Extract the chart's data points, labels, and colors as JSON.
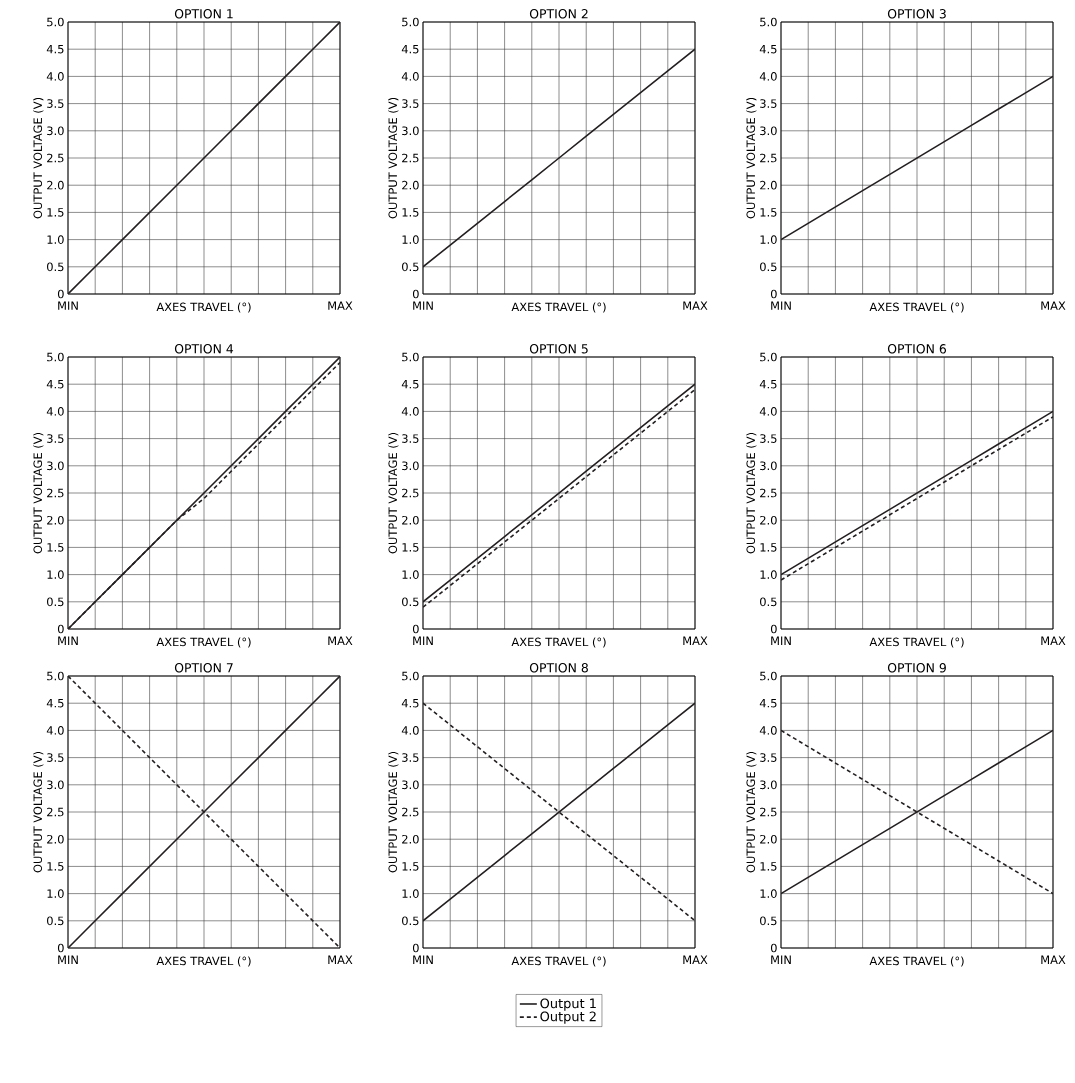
{
  "chart_data": [
    {
      "type": "line",
      "title": "OPTION 1",
      "xlabel": "AXES TRAVEL (°)",
      "ylabel": "OUTPUT VOLTAGE (V)",
      "categories": [
        "MIN",
        null,
        null,
        null,
        null,
        null,
        null,
        null,
        null,
        null,
        "MAX"
      ],
      "ylim": [
        0,
        5
      ],
      "grid": true,
      "yticks": [
        0,
        {
          "value": 0.5,
          "label": "0.5"
        },
        {
          "value": 1,
          "label": "1.0"
        },
        {
          "value": 1.5,
          "label": "1.5"
        },
        {
          "value": 2,
          "label": "2.0"
        },
        {
          "value": 2.5,
          "label": "2.5"
        },
        {
          "value": 3,
          "label": "3.0"
        },
        {
          "value": 3.5,
          "label": "3.5"
        },
        {
          "value": 4,
          "label": "4.0"
        },
        {
          "value": 4.5,
          "label": "4.5"
        },
        {
          "value": 5,
          "label": "5.0"
        }
      ],
      "series": [
        {
          "color": "#231f20",
          "line_style": "solid",
          "values": [
            0,
            0.5,
            1,
            1.5,
            2,
            2.5,
            3,
            3.5,
            4,
            4.5,
            5
          ]
        }
      ]
    },
    {
      "type": "line",
      "title": "OPTION 2",
      "xlabel": "AXES TRAVEL (°)",
      "ylabel": "OUTPUT VOLTAGE (V)",
      "categories": [
        "MIN",
        null,
        null,
        null,
        null,
        null,
        null,
        null,
        null,
        null,
        "MAX"
      ],
      "ylim": [
        0,
        5
      ],
      "grid": true,
      "yticks": [
        0,
        {
          "value": 0.5,
          "label": "0.5"
        },
        {
          "value": 1,
          "label": "1.0"
        },
        {
          "value": 1.5,
          "label": "1.5"
        },
        {
          "value": 2,
          "label": "2.0"
        },
        {
          "value": 2.5,
          "label": "2.5"
        },
        {
          "value": 3,
          "label": "3.0"
        },
        {
          "value": 3.5,
          "label": "3.5"
        },
        {
          "value": 4,
          "label": "4.0"
        },
        {
          "value": 4.5,
          "label": "4.5"
        },
        {
          "value": 5,
          "label": "5.0"
        }
      ],
      "series": [
        {
          "color": "#231f20",
          "line_style": "solid",
          "values": [
            0.5,
            0.9,
            1.3,
            1.7,
            2.1,
            2.5,
            2.9,
            3.3,
            3.7,
            4.1,
            4.5
          ]
        }
      ]
    },
    {
      "type": "line",
      "title": "OPTION 3",
      "xlabel": "AXES TRAVEL (°)",
      "ylabel": "OUTPUT VOLTAGE (V)",
      "categories": [
        "MIN",
        null,
        null,
        null,
        null,
        null,
        null,
        null,
        null,
        null,
        "MAX"
      ],
      "ylim": [
        0,
        5
      ],
      "grid": true,
      "yticks": [
        0,
        {
          "value": 0.5,
          "label": "0.5"
        },
        {
          "value": 1,
          "label": "1.0"
        },
        {
          "value": 1.5,
          "label": "1.5"
        },
        {
          "value": 2,
          "label": "2.0"
        },
        {
          "value": 2.5,
          "label": "2.5"
        },
        {
          "value": 3,
          "label": "3.0"
        },
        {
          "value": 3.5,
          "label": "3.5"
        },
        {
          "value": 4,
          "label": "4.0"
        },
        {
          "value": 4.5,
          "label": "4.5"
        },
        {
          "value": 5,
          "label": "5.0"
        }
      ],
      "series": [
        {
          "color": "#231f20",
          "line_style": "solid",
          "values": [
            1,
            1.3,
            1.6,
            1.9,
            2.2,
            2.5,
            2.8,
            3.1,
            3.4,
            3.7,
            4
          ]
        }
      ]
    },
    {
      "type": "line",
      "title": "OPTION 4",
      "xlabel": "AXES TRAVEL (°)",
      "ylabel": "OUTPUT VOLTAGE (V)",
      "categories": [
        "MIN",
        null,
        null,
        null,
        null,
        null,
        null,
        null,
        null,
        null,
        "MAX"
      ],
      "ylim": [
        0,
        5
      ],
      "grid": true,
      "yticks": [
        0,
        {
          "value": 0.5,
          "label": "0.5"
        },
        {
          "value": 1,
          "label": "1.0"
        },
        {
          "value": 1.5,
          "label": "1.5"
        },
        {
          "value": 2,
          "label": "2.0"
        },
        {
          "value": 2.5,
          "label": "2.5"
        },
        {
          "value": 3,
          "label": "3.0"
        },
        {
          "value": 3.5,
          "label": "3.5"
        },
        {
          "value": 4,
          "label": "4.0"
        },
        {
          "value": 4.5,
          "label": "4.5"
        },
        {
          "value": 5,
          "label": "5.0"
        }
      ],
      "series": [
        {
          "color": "#231f20",
          "line_style": "solid",
          "values": [
            0,
            0.5,
            1,
            1.5,
            2,
            2.5,
            3,
            3.5,
            4,
            4.5,
            5
          ]
        },
        {
          "color": "#231f20",
          "line_style": "dashed",
          "values": [
            0,
            0.5,
            1,
            1.5,
            2,
            2.4,
            2.9,
            3.4,
            3.9,
            4.4,
            4.9
          ]
        }
      ]
    },
    {
      "type": "line",
      "title": "OPTION 5",
      "xlabel": "AXES TRAVEL (°)",
      "ylabel": "OUTPUT VOLTAGE (V)",
      "categories": [
        "MIN",
        null,
        null,
        null,
        null,
        null,
        null,
        null,
        null,
        null,
        "MAX"
      ],
      "ylim": [
        0,
        5
      ],
      "grid": true,
      "yticks": [
        0,
        {
          "value": 0.5,
          "label": "0.5"
        },
        {
          "value": 1,
          "label": "1.0"
        },
        {
          "value": 1.5,
          "label": "1.5"
        },
        {
          "value": 2,
          "label": "2.0"
        },
        {
          "value": 2.5,
          "label": "2.5"
        },
        {
          "value": 3,
          "label": "3.0"
        },
        {
          "value": 3.5,
          "label": "3.5"
        },
        {
          "value": 4,
          "label": "4.0"
        },
        {
          "value": 4.5,
          "label": "4.5"
        },
        {
          "value": 5,
          "label": "5.0"
        }
      ],
      "series": [
        {
          "color": "#231f20",
          "line_style": "solid",
          "values": [
            0.5,
            0.9,
            1.3,
            1.7,
            2.1,
            2.5,
            2.9,
            3.3,
            3.7,
            4.1,
            4.5
          ]
        },
        {
          "color": "#231f20",
          "line_style": "dashed",
          "values": [
            0.4,
            0.8,
            1.2,
            1.6,
            2,
            2.4,
            2.8,
            3.2,
            3.6,
            4,
            4.4
          ]
        }
      ]
    },
    {
      "type": "line",
      "title": "OPTION 6",
      "xlabel": "AXES TRAVEL (°)",
      "ylabel": "OUTPUT VOLTAGE (V)",
      "categories": [
        "MIN",
        null,
        null,
        null,
        null,
        null,
        null,
        null,
        null,
        null,
        "MAX"
      ],
      "ylim": [
        0,
        5
      ],
      "grid": true,
      "yticks": [
        0,
        {
          "value": 0.5,
          "label": "0.5"
        },
        {
          "value": 1,
          "label": "1.0"
        },
        {
          "value": 1.5,
          "label": "1.5"
        },
        {
          "value": 2,
          "label": "2.0"
        },
        {
          "value": 2.5,
          "label": "2.5"
        },
        {
          "value": 3,
          "label": "3.0"
        },
        {
          "value": 3.5,
          "label": "3.5"
        },
        {
          "value": 4,
          "label": "4.0"
        },
        {
          "value": 4.5,
          "label": "4.5"
        },
        {
          "value": 5,
          "label": "5.0"
        }
      ],
      "series": [
        {
          "color": "#231f20",
          "line_style": "solid",
          "values": [
            1,
            1.3,
            1.6,
            1.9,
            2.2,
            2.5,
            2.8,
            3.1,
            3.4,
            3.7,
            4
          ]
        },
        {
          "color": "#231f20",
          "line_style": "dashed",
          "values": [
            0.9,
            1.2,
            1.5,
            1.8,
            2.1,
            2.4,
            2.7,
            3,
            3.3,
            3.6,
            3.9
          ]
        }
      ]
    },
    {
      "type": "line",
      "title": "OPTION 7",
      "xlabel": "AXES TRAVEL (°)",
      "ylabel": "OUTPUT VOLTAGE (V)",
      "categories": [
        "MIN",
        null,
        null,
        null,
        null,
        null,
        null,
        null,
        null,
        null,
        "MAX"
      ],
      "ylim": [
        0,
        5
      ],
      "grid": true,
      "yticks": [
        0,
        {
          "value": 0.5,
          "label": "0.5"
        },
        {
          "value": 1,
          "label": "1.0"
        },
        {
          "value": 1.5,
          "label": "1.5"
        },
        {
          "value": 2,
          "label": "2.0"
        },
        {
          "value": 2.5,
          "label": "2.5"
        },
        {
          "value": 3,
          "label": "3.0"
        },
        {
          "value": 3.5,
          "label": "3.5"
        },
        {
          "value": 4,
          "label": "4.0"
        },
        {
          "value": 4.5,
          "label": "4.5"
        },
        {
          "value": 5,
          "label": "5.0"
        }
      ],
      "series": [
        {
          "color": "#231f20",
          "line_style": "solid",
          "values": [
            0,
            0.5,
            1,
            1.5,
            2,
            2.5,
            3,
            3.5,
            4,
            4.5,
            5
          ]
        },
        {
          "color": "#231f20",
          "line_style": "dashed",
          "values": [
            5,
            4.5,
            4,
            3.5,
            3,
            2.5,
            2,
            1.5,
            1,
            0.5,
            0
          ]
        }
      ]
    },
    {
      "type": "line",
      "title": "OPTION 8",
      "xlabel": "AXES TRAVEL (°)",
      "ylabel": "OUTPUT VOLTAGE (V)",
      "categories": [
        "MIN",
        null,
        null,
        null,
        null,
        null,
        null,
        null,
        null,
        null,
        "MAX"
      ],
      "ylim": [
        0,
        5
      ],
      "grid": true,
      "legend": "bottom",
      "yticks": [
        0,
        {
          "value": 0.5,
          "label": "0.5"
        },
        {
          "value": 1,
          "label": "1.0"
        },
        {
          "value": 1.5,
          "label": "1.5"
        },
        {
          "value": 2,
          "label": "2.0"
        },
        {
          "value": 2.5,
          "label": "2.5"
        },
        {
          "value": 3,
          "label": "3.0"
        },
        {
          "value": 3.5,
          "label": "3.5"
        },
        {
          "value": 4,
          "label": "4.0"
        },
        {
          "value": 4.5,
          "label": "4.5"
        },
        {
          "value": 5,
          "label": "5.0"
        }
      ],
      "series": [
        {
          "name": "Output 1",
          "color": "#231f20",
          "line_style": "solid",
          "values": [
            0.5,
            0.9,
            1.3,
            1.7,
            2.1,
            2.5,
            2.9,
            3.3,
            3.7,
            4.1,
            4.5
          ]
        },
        {
          "name": "Output 2",
          "color": "#231f20",
          "line_style": "dashed",
          "values": [
            4.5,
            4.1,
            3.7,
            3.3,
            2.9,
            2.5,
            2.1,
            1.7,
            1.3,
            0.9,
            0.5
          ]
        }
      ]
    },
    {
      "type": "line",
      "title": "OPTION 9",
      "xlabel": "AXES TRAVEL (°)",
      "ylabel": "OUTPUT VOLTAGE (V)",
      "categories": [
        "MIN",
        null,
        null,
        null,
        null,
        null,
        null,
        null,
        null,
        null,
        "MAX"
      ],
      "ylim": [
        0,
        5
      ],
      "grid": true,
      "yticks": [
        0,
        {
          "value": 0.5,
          "label": "0.5"
        },
        {
          "value": 1,
          "label": "1.0"
        },
        {
          "value": 1.5,
          "label": "1.5"
        },
        {
          "value": 2,
          "label": "2.0"
        },
        {
          "value": 2.5,
          "label": "2.5"
        },
        {
          "value": 3,
          "label": "3.0"
        },
        {
          "value": 3.5,
          "label": "3.5"
        },
        {
          "value": 4,
          "label": "4.0"
        },
        {
          "value": 4.5,
          "label": "4.5"
        },
        {
          "value": 5,
          "label": "5.0"
        }
      ],
      "series": [
        {
          "color": "#231f20",
          "line_style": "solid",
          "values": [
            1,
            1.3,
            1.6,
            1.9,
            2.2,
            2.5,
            2.8,
            3.1,
            3.4,
            3.7,
            4
          ]
        },
        {
          "color": "#231f20",
          "line_style": "dashed",
          "values": [
            4,
            3.7,
            3.4,
            3.1,
            2.8,
            2.5,
            2.2,
            1.9,
            1.6,
            1.3,
            1
          ]
        }
      ]
    }
  ]
}
